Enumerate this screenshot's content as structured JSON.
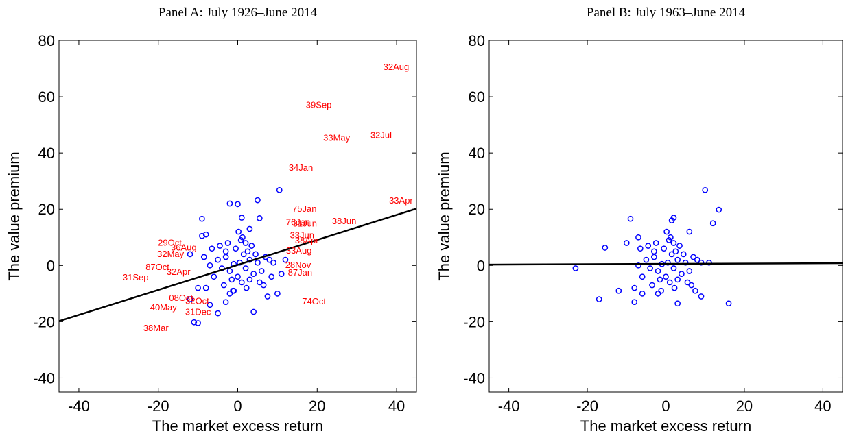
{
  "chart_data": [
    {
      "type": "scatter",
      "title": "Panel A: July 1926–June 2014",
      "x_label": "The market excess return",
      "y_label": "The value premium",
      "xlim": [
        -45,
        45
      ],
      "ylim": [
        -45,
        80
      ],
      "xticks": [
        -40,
        -20,
        0,
        20,
        40
      ],
      "yticks": [
        -40,
        -20,
        0,
        20,
        40,
        60,
        80
      ],
      "points": {
        "color": "#0000ff",
        "x": [
          0.5,
          -1,
          2,
          3,
          -2,
          1.5,
          -3,
          4,
          0,
          -0.5,
          2.5,
          -4,
          5,
          1,
          -1.5,
          3.5,
          -2.5,
          6,
          -5,
          0.8,
          2.2,
          -3.5,
          4.5,
          -6,
          7,
          -7,
          1.2,
          -1.2,
          3,
          -3,
          5.5,
          -4.5,
          8,
          -8,
          0.2,
          2,
          -2,
          6.5,
          -6.5,
          9,
          10.5,
          -2,
          0,
          5,
          -9,
          1,
          5.5,
          -10,
          -11,
          -5,
          4,
          -7,
          10,
          -12,
          -3,
          -9,
          -12,
          12,
          11,
          -10,
          -8,
          7.5,
          -1,
          3,
          8.5,
          -8.5
        ],
        "y": [
          1,
          0.5,
          -1,
          2,
          -2,
          4,
          3,
          -3,
          -4,
          6,
          5,
          -1,
          1,
          -6,
          -5,
          7,
          8,
          -2,
          2,
          9,
          -8,
          -7,
          4,
          -4,
          3,
          0,
          10,
          -9,
          -5,
          5,
          -6,
          7,
          2,
          -8,
          12,
          8,
          -10,
          -7,
          6,
          1,
          26.8,
          22,
          21.8,
          23.2,
          16.6,
          17,
          16.8,
          -20.5,
          -20.2,
          -17,
          -16.5,
          -14,
          -10,
          -12,
          -13,
          10.5,
          4,
          2,
          -3,
          -8,
          11,
          -11,
          -9,
          13,
          -4,
          3
        ]
      },
      "fit_line": {
        "color": "#000000",
        "x": [
          -45,
          45
        ],
        "y": [
          -19.8,
          20.2
        ]
      },
      "annotation_color": "#ff0000",
      "annotations": [
        {
          "text": "32Aug",
          "x": 39.9,
          "y": 70.3
        },
        {
          "text": "39Sep",
          "x": 20.4,
          "y": 56.8
        },
        {
          "text": "33May",
          "x": 24.9,
          "y": 45.1
        },
        {
          "text": "32Jul",
          "x": 36.1,
          "y": 46.1
        },
        {
          "text": "34Jan",
          "x": 15.9,
          "y": 34.5
        },
        {
          "text": "33Apr",
          "x": 41.1,
          "y": 22.8
        },
        {
          "text": "75Jan",
          "x": 16.8,
          "y": 19.9
        },
        {
          "text": "76Jan",
          "x": 15.2,
          "y": 15.2
        },
        {
          "text": "31Jun",
          "x": 16.9,
          "y": 14.7
        },
        {
          "text": "38Jun",
          "x": 26.8,
          "y": 15.5
        },
        {
          "text": "33Jun",
          "x": 16.2,
          "y": 10.6
        },
        {
          "text": "38Apr",
          "x": 17.4,
          "y": 8.7
        },
        {
          "text": "33Aug",
          "x": 15.4,
          "y": 5.0
        },
        {
          "text": "28Nov",
          "x": 15.2,
          "y": -0.1
        },
        {
          "text": "87Jan",
          "x": 15.7,
          "y": -2.8
        },
        {
          "text": "74Oct",
          "x": 19.2,
          "y": -13.0
        },
        {
          "text": "29Oct",
          "x": -17.1,
          "y": 7.9
        },
        {
          "text": "36Aug",
          "x": -13.6,
          "y": 6.2
        },
        {
          "text": "32May",
          "x": -16.9,
          "y": 3.8
        },
        {
          "text": "87Oct",
          "x": -20.2,
          "y": -0.8
        },
        {
          "text": "31Sep",
          "x": -25.7,
          "y": -4.5
        },
        {
          "text": "32Apr",
          "x": -14.9,
          "y": -2.5
        },
        {
          "text": "08Oct",
          "x": -14.3,
          "y": -11.8
        },
        {
          "text": "32Oct",
          "x": -10.2,
          "y": -12.8
        },
        {
          "text": "40May",
          "x": -18.7,
          "y": -15.2
        },
        {
          "text": "31Dec",
          "x": -10.0,
          "y": -16.7
        },
        {
          "text": "38Mar",
          "x": -20.6,
          "y": -22.5
        }
      ]
    },
    {
      "type": "scatter",
      "title": "Panel B: July 1963–June 2014",
      "x_label": "The market excess return",
      "y_label": "The value premium",
      "xlim": [
        -45,
        45
      ],
      "ylim": [
        -45,
        80
      ],
      "xticks": [
        -40,
        -20,
        0,
        20,
        40
      ],
      "yticks": [
        -40,
        -20,
        0,
        20,
        40,
        60,
        80
      ],
      "points": {
        "color": "#0000ff",
        "x": [
          0.5,
          -1,
          2,
          3,
          -2,
          1.5,
          -3,
          4,
          0,
          -0.5,
          2.5,
          -4,
          5,
          1,
          -1.5,
          3.5,
          -2.5,
          6,
          -5,
          0.8,
          2.2,
          -3.5,
          4.5,
          -6,
          7,
          -7,
          1.2,
          -1.2,
          3,
          -3,
          5.5,
          -4.5,
          8,
          -8,
          0.2,
          2,
          -2,
          6.5,
          -6.5,
          9,
          -23,
          -17,
          -15.5,
          -9,
          10,
          13.5,
          12,
          16,
          9,
          3,
          -8,
          -12,
          -10,
          11,
          -7,
          7.5,
          6,
          -6,
          1.5,
          2
        ],
        "y": [
          1,
          0.5,
          -1,
          2,
          -2,
          4,
          3,
          -3,
          -4,
          6,
          5,
          -1,
          1,
          -6,
          -5,
          7,
          8,
          -2,
          2,
          9,
          -8,
          -7,
          4,
          -4,
          3,
          0,
          10,
          -9,
          -5,
          5,
          -6,
          7,
          2,
          -8,
          12,
          8,
          -10,
          -7,
          6,
          1,
          -1,
          -12,
          6.3,
          16.6,
          26.8,
          19.8,
          15,
          -13.5,
          -11,
          -13.5,
          -13,
          -9,
          8,
          1,
          10,
          -9,
          12,
          -10,
          16,
          17
        ]
      },
      "fit_line": {
        "color": "#000000",
        "x": [
          -45,
          45
        ],
        "y": [
          0.3,
          0.8
        ]
      }
    }
  ]
}
